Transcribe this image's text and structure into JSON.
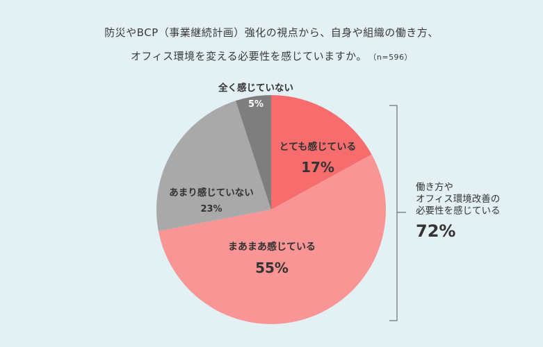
{
  "title": {
    "line1": "防災やBCP（事業継続計画）強化の視点から、自身や組織の働き方、",
    "line2": "オフィス環境を変える必要性を感じていますか。",
    "n_label": "（n=596）"
  },
  "chart_data": {
    "type": "pie",
    "categories": [
      "とても感じている",
      "まあまあ感じている",
      "あまり感じていない",
      "全く感じていない"
    ],
    "values": [
      17,
      55,
      23,
      5
    ],
    "unit": "%",
    "colors": [
      "#f76c6c",
      "#f99595",
      "#a9a9a9",
      "#7e7e7e"
    ],
    "value_labels": [
      "17%",
      "55%",
      "23%",
      "5%"
    ]
  },
  "summary": {
    "lines": [
      "働き方や",
      "オフィス環境改善の",
      "必要性を感じている"
    ],
    "value": "72%"
  }
}
